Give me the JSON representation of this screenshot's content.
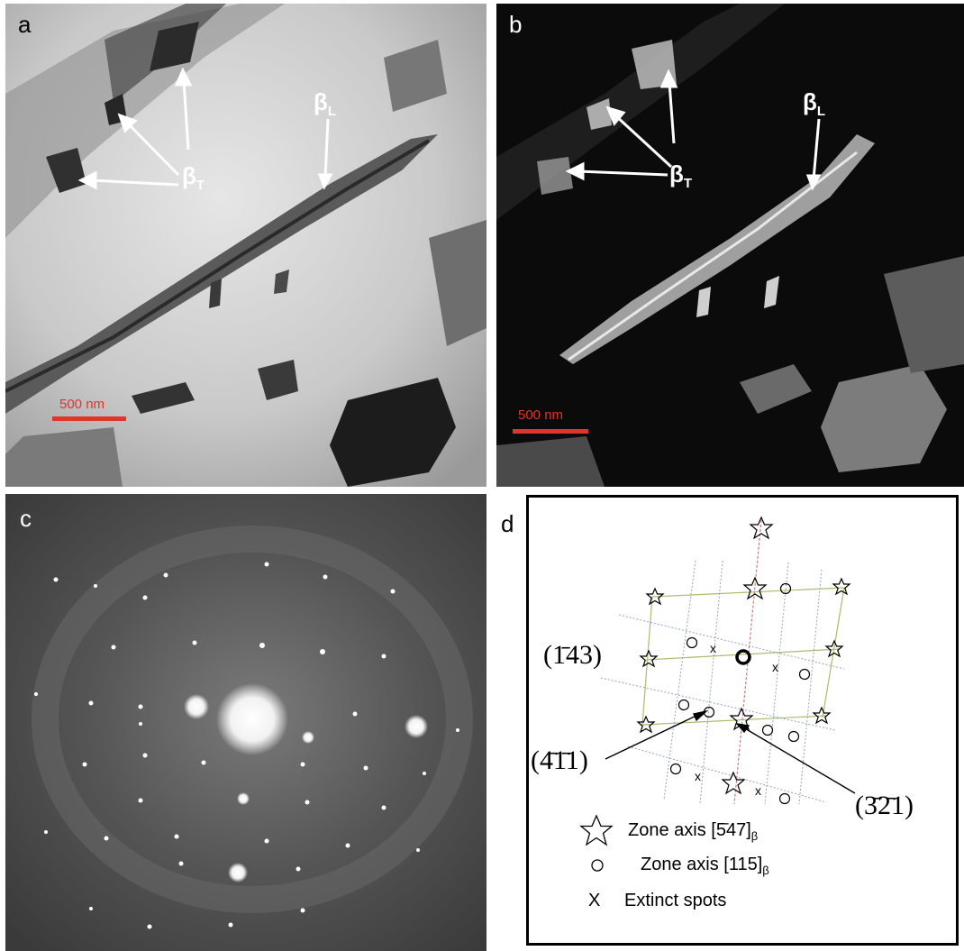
{
  "panels": {
    "a": {
      "letter": "a",
      "scale_bar": "500 nm",
      "label_beta_T": "β",
      "sub_T": "T",
      "label_beta_L": "β",
      "sub_L": "L"
    },
    "b": {
      "letter": "b",
      "scale_bar": "500 nm",
      "label_beta_T": "β",
      "sub_T": "T",
      "label_beta_L": "β",
      "sub_L": "L"
    },
    "c": {
      "letter": "c"
    },
    "d": {
      "letter": "d",
      "planes": [
        "(1̄43)",
        "(4̄1̄1)",
        "(3̄2̄1)"
      ],
      "legend": [
        {
          "symbol": "star-icon",
          "text": "Zone axis  [5̄47]",
          "sub": "β"
        },
        {
          "symbol": "circle-icon",
          "text": "Zone axis  [115]",
          "sub": "β"
        },
        {
          "symbol": "cross-icon",
          "text": "Extinct spots",
          "sub": ""
        }
      ]
    }
  },
  "colors": {
    "scale_bar": "#e0352b",
    "frame": "#000000",
    "grid_green": "#a9bd6a",
    "grid_blue": "#8fa3c4",
    "grid_red": "#c77a7a"
  }
}
